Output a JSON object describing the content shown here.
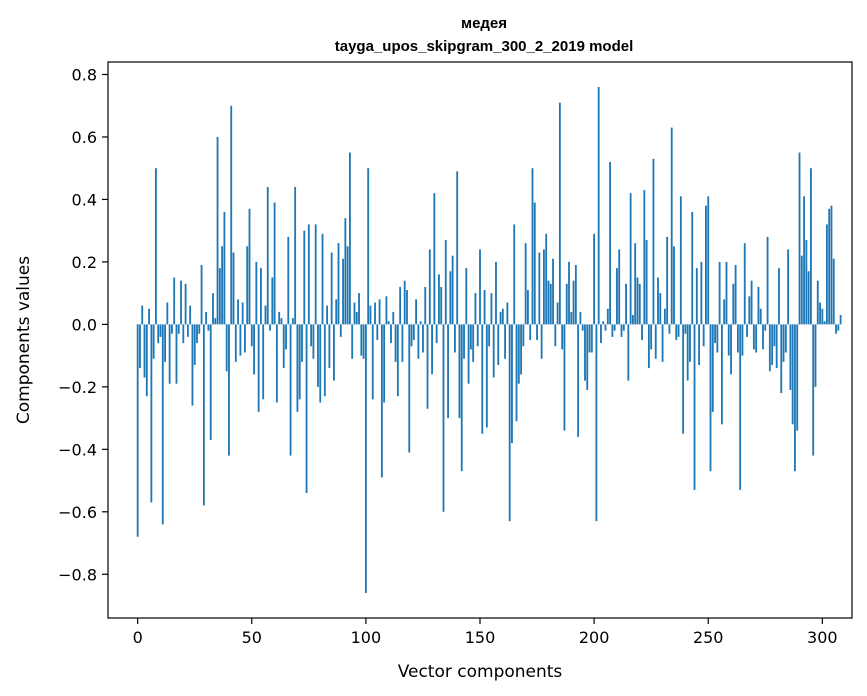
{
  "chart_data": {
    "type": "bar",
    "title_line1": "медея",
    "title_line2": "tayga_upos_skipgram_300_2_2019 model",
    "xlabel": "Vector components",
    "ylabel": "Components values",
    "xlim": [
      -13,
      313
    ],
    "ylim": [
      -0.94,
      0.84
    ],
    "xticks": [
      0,
      50,
      100,
      150,
      200,
      250,
      300
    ],
    "yticks": [
      0.8,
      0.6,
      0.4,
      0.2,
      0.0,
      -0.2,
      -0.4,
      -0.6,
      -0.8
    ],
    "ytick_labels": [
      "0.8",
      "0.6",
      "0.4",
      "0.2",
      "0.0",
      "−0.2",
      "−0.4",
      "−0.6",
      "−0.8"
    ],
    "bar_color": "#1f77b4",
    "values": [
      -0.68,
      -0.14,
      0.06,
      -0.17,
      -0.23,
      0.05,
      -0.57,
      -0.11,
      0.5,
      -0.06,
      -0.04,
      -0.64,
      -0.12,
      0.07,
      -0.19,
      -0.03,
      0.15,
      -0.19,
      -0.03,
      0.14,
      -0.06,
      0.13,
      -0.04,
      0.06,
      -0.26,
      -0.13,
      -0.06,
      -0.03,
      0.19,
      -0.58,
      0.04,
      -0.02,
      -0.37,
      0.1,
      0.02,
      0.6,
      0.18,
      0.25,
      0.36,
      -0.15,
      -0.42,
      0.7,
      0.23,
      -0.12,
      0.08,
      -0.1,
      0.07,
      -0.09,
      0.25,
      0.37,
      -0.07,
      -0.16,
      0.2,
      -0.28,
      0.18,
      -0.24,
      0.06,
      0.44,
      -0.02,
      0.15,
      0.39,
      -0.25,
      0.04,
      0.02,
      -0.14,
      -0.08,
      0.28,
      -0.42,
      0.02,
      0.44,
      -0.28,
      -0.24,
      -0.12,
      0.3,
      -0.54,
      0.32,
      -0.07,
      -0.11,
      0.32,
      -0.2,
      -0.25,
      0.29,
      -0.23,
      0.06,
      -0.14,
      0.23,
      -0.18,
      0.08,
      0.26,
      -0.04,
      0.21,
      0.34,
      0.25,
      0.55,
      -0.11,
      0.07,
      0.04,
      0.1,
      -0.1,
      -0.11,
      -0.86,
      0.5,
      0.06,
      -0.24,
      0.07,
      -0.05,
      0.08,
      -0.49,
      -0.25,
      0.09,
      0.01,
      -0.06,
      0.04,
      -0.12,
      -0.23,
      0.12,
      -0.12,
      0.14,
      0.11,
      -0.41,
      -0.07,
      -0.05,
      0.08,
      -0.11,
      0.01,
      -0.09,
      0.12,
      -0.27,
      0.24,
      -0.16,
      0.42,
      -0.06,
      0.16,
      0.12,
      -0.6,
      0.27,
      -0.3,
      0.17,
      0.22,
      -0.09,
      0.49,
      -0.3,
      -0.47,
      -0.11,
      0.18,
      -0.19,
      -0.08,
      -0.12,
      0.1,
      -0.07,
      0.24,
      -0.35,
      0.11,
      -0.33,
      -0.07,
      0.1,
      -0.17,
      0.2,
      -0.13,
      0.04,
      0.05,
      -0.11,
      0.07,
      -0.63,
      -0.38,
      0.32,
      -0.31,
      -0.19,
      -0.16,
      -0.07,
      0.26,
      0.11,
      -0.05,
      0.5,
      0.39,
      -0.05,
      0.23,
      -0.11,
      0.24,
      0.29,
      0.14,
      0.13,
      0.21,
      -0.07,
      0.07,
      0.71,
      -0.08,
      -0.34,
      0.13,
      0.2,
      0.04,
      0.14,
      0.19,
      -0.36,
      0.04,
      -0.02,
      -0.18,
      -0.21,
      -0.09,
      -0.09,
      0.29,
      -0.63,
      0.76,
      -0.06,
      0.01,
      -0.02,
      0.05,
      0.52,
      -0.04,
      -0.02,
      0.18,
      0.24,
      -0.04,
      -0.02,
      0.13,
      -0.18,
      0.42,
      0.03,
      0.26,
      0.15,
      0.13,
      -0.05,
      0.43,
      0.27,
      -0.14,
      -0.08,
      0.53,
      -0.11,
      0.15,
      0.1,
      -0.12,
      0.05,
      0.28,
      -0.03,
      0.63,
      0.25,
      -0.05,
      -0.04,
      0.41,
      -0.35,
      -0.03,
      -0.18,
      -0.12,
      0.36,
      -0.53,
      0.18,
      -0.13,
      0.2,
      -0.07,
      0.38,
      0.41,
      -0.47,
      -0.28,
      -0.06,
      -0.09,
      0.2,
      -0.32,
      0.08,
      0.2,
      -0.1,
      -0.16,
      0.13,
      0.19,
      -0.09,
      -0.53,
      -0.1,
      0.26,
      -0.04,
      0.09,
      0.14,
      -0.08,
      -0.09,
      0.12,
      0.05,
      -0.08,
      -0.02,
      0.28,
      -0.15,
      -0.13,
      -0.07,
      -0.14,
      0.18,
      -0.22,
      -0.12,
      -0.09,
      0.24,
      -0.21,
      -0.32,
      -0.47,
      -0.34,
      0.55,
      0.22,
      0.41,
      0.27,
      0.17,
      0.5,
      -0.42,
      -0.2,
      0.14,
      0.07,
      0.05,
      0.01,
      0.32,
      0.37,
      0.38,
      0.21,
      -0.03,
      -0.02,
      0.03
    ]
  }
}
